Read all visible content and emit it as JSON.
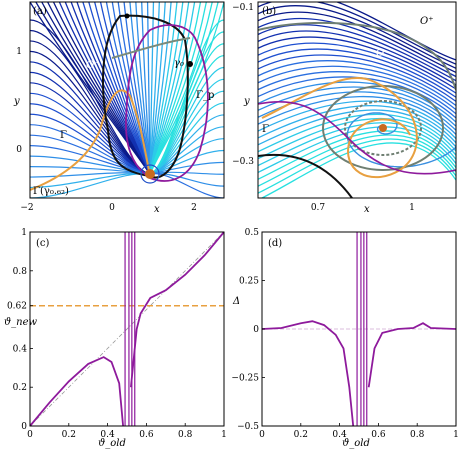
{
  "panels": {
    "a": {
      "tag": "(a)",
      "x_ticks": [
        "−2",
        "0",
        "2"
      ],
      "y_ticks": [
        "1",
        "0"
      ],
      "xlabel": "x",
      "ylabel": "y",
      "labels": {
        "O_minus": "O⁻",
        "gamma": "γ₀",
        "Gamma_p": "Γ_p",
        "Gamma": "Γ",
        "bottom": "Γ(γ₀.₆₂)"
      }
    },
    "b": {
      "tag": "(b)",
      "x_ticks": [
        "0.7",
        "1"
      ],
      "y_ticks": [
        "−0.1",
        "−0.3"
      ],
      "xlabel": "x",
      "ylabel": "y",
      "labels": {
        "O_plus": "O⁺",
        "O": "O",
        "Gamma": "Γ"
      }
    }
  },
  "chart_data": [
    {
      "type": "line",
      "panel": "(c)",
      "xlabel": "ϑ_old",
      "ylabel": "ϑ_new",
      "xlim": [
        0,
        1
      ],
      "ylim": [
        0,
        1
      ],
      "x_ticks": [
        "0",
        "0.2",
        "0.4",
        "0.6",
        "0.8",
        "1"
      ],
      "y_ticks": [
        "0",
        "0.2",
        "0.4",
        "0.62",
        "0.8",
        "1"
      ],
      "reference_line": {
        "style": "dashed",
        "color": "#e8a040",
        "y": 0.62
      },
      "diagonal": {
        "style": "dash-dot",
        "color": "#999999"
      },
      "series": [
        {
          "color": "#8e1a9c",
          "points": [
            [
              0,
              0
            ],
            [
              0.1,
              0.12
            ],
            [
              0.2,
              0.23
            ],
            [
              0.3,
              0.32
            ],
            [
              0.38,
              0.355
            ],
            [
              0.42,
              0.33
            ],
            [
              0.46,
              0.22
            ],
            [
              0.48,
              0.0
            ]
          ]
        },
        {
          "color": "#8e1a9c",
          "points": [
            [
              0.52,
              0.2
            ],
            [
              0.55,
              0.5
            ],
            [
              0.57,
              0.58
            ],
            [
              0.62,
              0.66
            ],
            [
              0.7,
              0.7
            ],
            [
              0.8,
              0.78
            ],
            [
              0.9,
              0.88
            ],
            [
              1,
              1
            ]
          ]
        }
      ]
    },
    {
      "type": "line",
      "panel": "(d)",
      "xlabel": "ϑ_old",
      "ylabel": "Δ",
      "xlim": [
        0,
        1
      ],
      "ylim": [
        -0.5,
        0.5
      ],
      "x_ticks": [
        "0",
        "0.2",
        "0.4",
        "0.6",
        "0.8",
        "1"
      ],
      "y_ticks": [
        "0.5",
        "0.25",
        "0",
        "−0.25",
        "−0.5"
      ],
      "series": [
        {
          "color": "#8e1a9c",
          "points": [
            [
              0,
              0
            ],
            [
              0.1,
              0.005
            ],
            [
              0.2,
              0.03
            ],
            [
              0.26,
              0.04
            ],
            [
              0.32,
              0.02
            ],
            [
              0.38,
              -0.03
            ],
            [
              0.42,
              -0.1
            ],
            [
              0.45,
              -0.3
            ],
            [
              0.47,
              -0.5
            ]
          ]
        },
        {
          "color": "#8e1a9c",
          "points": [
            [
              0.55,
              -0.3
            ],
            [
              0.58,
              -0.1
            ],
            [
              0.62,
              -0.02
            ],
            [
              0.7,
              0
            ],
            [
              0.78,
              0.005
            ],
            [
              0.83,
              0.03
            ],
            [
              0.87,
              0.005
            ],
            [
              1,
              0
            ]
          ]
        }
      ]
    }
  ]
}
